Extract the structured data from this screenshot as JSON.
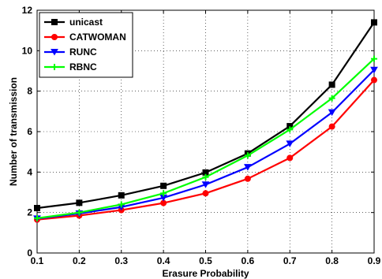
{
  "chart_data": {
    "type": "line",
    "title": "",
    "xlabel": "Erasure Probability",
    "ylabel": "Number of transmission",
    "x": [
      0.1,
      0.2,
      0.3,
      0.4,
      0.5,
      0.6,
      0.7,
      0.8,
      0.9
    ],
    "xticks": [
      "0.1",
      "0.2",
      "0.3",
      "0.4",
      "0.5",
      "0.6",
      "0.7",
      "0.8",
      "0.9"
    ],
    "yticks": [
      "0",
      "2",
      "4",
      "6",
      "8",
      "10",
      "12"
    ],
    "xlim": [
      0.1,
      0.9
    ],
    "ylim": [
      0,
      12
    ],
    "grid": true,
    "legend_position": "top-left",
    "series": [
      {
        "name": "unicast",
        "color": "#000000",
        "marker": "square",
        "values": [
          2.22,
          2.48,
          2.85,
          3.32,
          3.98,
          4.92,
          6.27,
          8.32,
          11.4
        ]
      },
      {
        "name": "CATWOMAN",
        "color": "#ff0000",
        "marker": "circle",
        "values": [
          1.65,
          1.85,
          2.12,
          2.47,
          2.95,
          3.67,
          4.7,
          6.25,
          8.55
        ]
      },
      {
        "name": "RUNC",
        "color": "#0000ff",
        "marker": "triangle-down",
        "values": [
          1.7,
          1.95,
          2.27,
          2.73,
          3.38,
          4.24,
          5.4,
          6.95,
          9.05
        ]
      },
      {
        "name": "RBNC",
        "color": "#00ff00",
        "marker": "plus",
        "values": [
          1.72,
          2.0,
          2.4,
          2.95,
          3.75,
          4.82,
          6.1,
          7.65,
          9.6
        ]
      }
    ]
  }
}
